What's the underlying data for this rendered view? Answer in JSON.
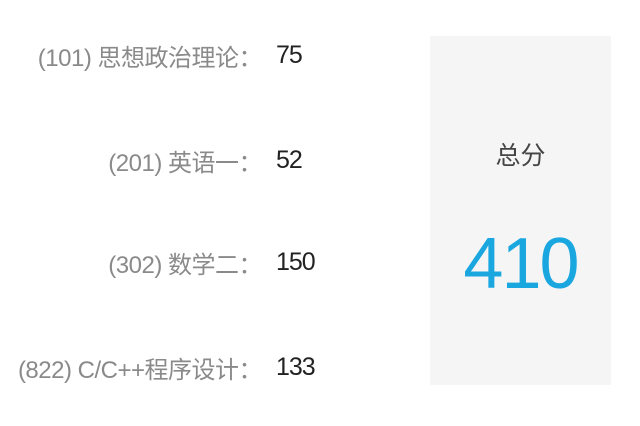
{
  "scores": [
    {
      "label": "(101) 思想政治理论：",
      "value": "75"
    },
    {
      "label": "(201) 英语一：",
      "value": "52"
    },
    {
      "label": "(302) 数学二：",
      "value": "150"
    },
    {
      "label": "(822) C/C++程序设计：",
      "value": "133"
    }
  ],
  "total": {
    "label": "总分",
    "value": "410",
    "color": "#1aa7e0"
  }
}
